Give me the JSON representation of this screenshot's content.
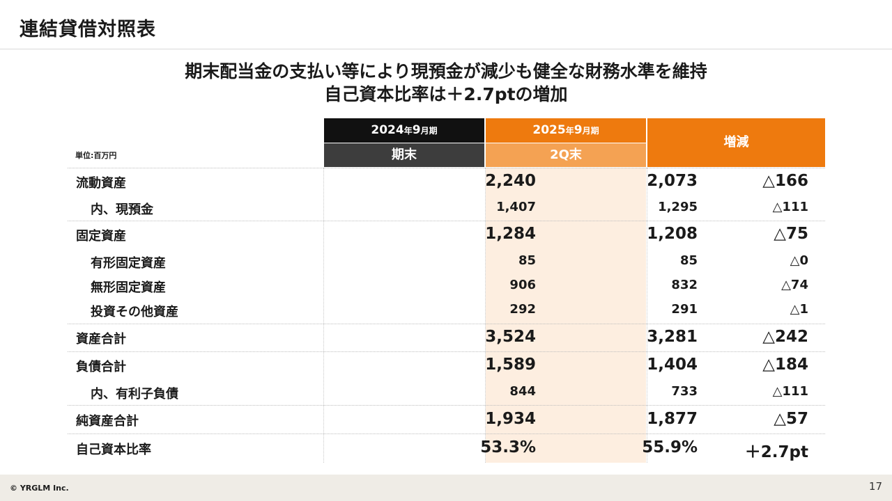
{
  "page": {
    "title": "連結貸借対照表",
    "headline_line1": "期末配当金の支払い等により現預金が減少も健全な財務水準を維持",
    "headline_line2": "自己資本比率は＋2.7ptの増加",
    "unit_label": "単位:百万円",
    "page_number": "17",
    "copyright": "© YRGLM Inc."
  },
  "table": {
    "columns": [
      {
        "year": "2024",
        "year_suffix": "年",
        "month": "9",
        "month_suffix": "月期",
        "period": "期末"
      },
      {
        "year": "2025",
        "year_suffix": "年",
        "month": "9",
        "month_suffix": "月期",
        "period": "2Q末"
      }
    ],
    "change_header": "増減",
    "rows": [
      {
        "label": "流動資産",
        "v1": "2,240",
        "v2": "2,073",
        "change": "△166"
      },
      {
        "label": "内、現預金",
        "v1": "1,407",
        "v2": "1,295",
        "change": "△111"
      },
      {
        "label": "固定資産",
        "v1": "1,284",
        "v2": "1,208",
        "change": "△75"
      },
      {
        "label": "有形固定資産",
        "v1": "85",
        "v2": "85",
        "change": "△0"
      },
      {
        "label": "無形固定資産",
        "v1": "906",
        "v2": "832",
        "change": "△74"
      },
      {
        "label": "投資その他資産",
        "v1": "292",
        "v2": "291",
        "change": "△1"
      },
      {
        "label": "資産合計",
        "v1": "3,524",
        "v2": "3,281",
        "change": "△242"
      },
      {
        "label": "負債合計",
        "v1": "1,589",
        "v2": "1,404",
        "change": "△184"
      },
      {
        "label": "内、有利子負債",
        "v1": "844",
        "v2": "733",
        "change": "△111"
      },
      {
        "label": "純資産合計",
        "v1": "1,934",
        "v2": "1,877",
        "change": "△57"
      },
      {
        "label": "自己資本比率",
        "v1": "53.3%",
        "v2": "55.9%",
        "change": "＋2.7pt"
      }
    ]
  },
  "colors": {
    "accent_orange": "#ee7a0e",
    "light_orange": "#f4a253",
    "highlight_bg": "#fdeee0",
    "header_black": "#111111",
    "header_dark": "#3d3d3d"
  }
}
